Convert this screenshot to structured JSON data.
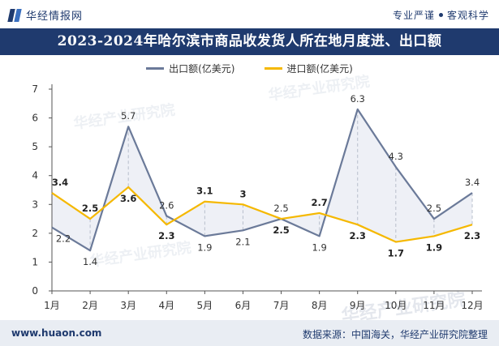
{
  "header": {
    "brand_name": "华经情报网",
    "slogan_left": "专业严谨",
    "slogan_right": "客观科学"
  },
  "chart_data": {
    "type": "line",
    "title": "2023-2024年哈尔滨市商品收发货人所在地月度进、出口额",
    "categories": [
      "1月",
      "2月",
      "3月",
      "4月",
      "5月",
      "6月",
      "7月",
      "8月",
      "9月",
      "10月",
      "11月",
      "12月"
    ],
    "ylim": [
      0,
      7
    ],
    "yticks": [
      0,
      1,
      2,
      3,
      4,
      5,
      6,
      7
    ],
    "grid": false,
    "legend_position": "top",
    "series": [
      {
        "name": "出口额(亿美元)",
        "color": "#6b7a99",
        "values": [
          2.2,
          1.4,
          5.7,
          2.6,
          1.9,
          2.1,
          2.5,
          1.9,
          6.3,
          4.3,
          2.5,
          3.4
        ],
        "labels": [
          "2.2",
          "1.4",
          "5.7",
          "2.6",
          "1.9",
          "2.1",
          "2.5",
          "1.9",
          "6.3",
          "4.3",
          "2.5",
          "3.4"
        ]
      },
      {
        "name": "进口额(亿美元)",
        "color": "#f5b800",
        "values": [
          3.4,
          2.5,
          3.6,
          2.3,
          3.1,
          3.0,
          2.5,
          2.7,
          2.3,
          1.7,
          1.9,
          2.3
        ],
        "labels": [
          "3.4",
          "2.5",
          "3.6",
          "2.3",
          "3.1",
          "3",
          "2.5",
          "2.7",
          "2.3",
          "1.7",
          "1.9",
          "2.3"
        ]
      }
    ]
  },
  "watermark": {
    "text": "华经产业研究院",
    "url_text": "www.huaon.com"
  },
  "footer": {
    "url": "www.huaon.com",
    "source": "数据来源：中国海关，华经产业研究院整理"
  }
}
